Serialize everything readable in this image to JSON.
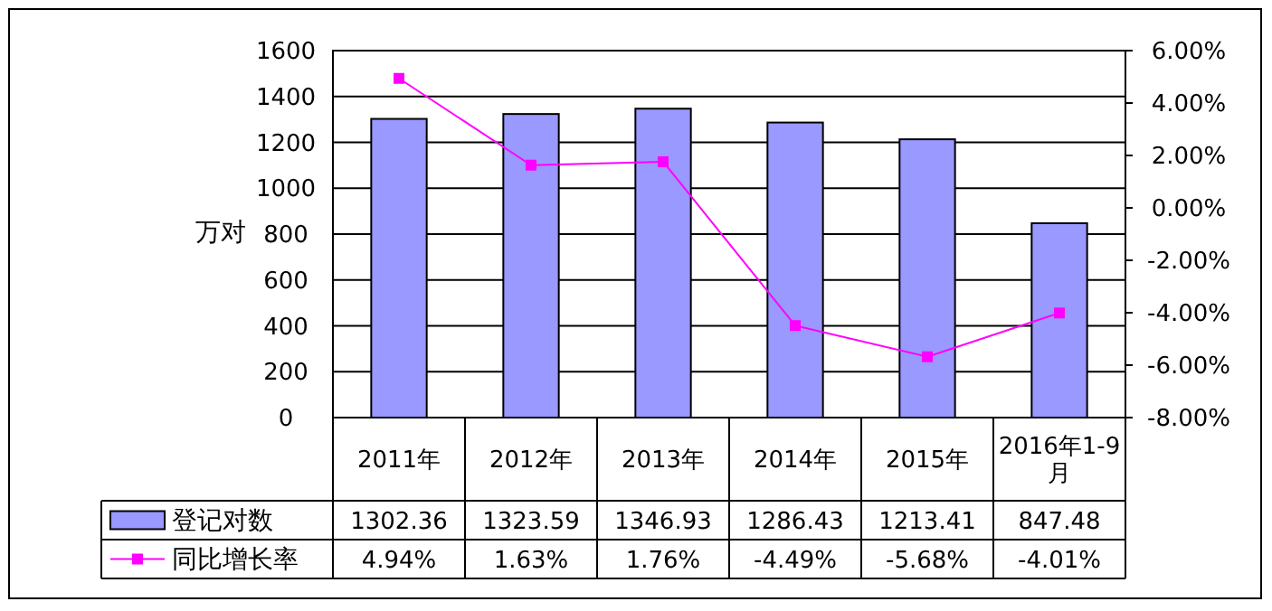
{
  "chart_data": {
    "type": "bar",
    "ylabel": "万对",
    "categories": [
      "2011年",
      "2012年",
      "2013年",
      "2014年",
      "2015年",
      "2016年1-9月"
    ],
    "series": [
      {
        "name": "登记对数",
        "color": "#9999ff",
        "values": [
          1302.36,
          1323.59,
          1346.93,
          1286.43,
          1213.41,
          847.48
        ],
        "value_labels": [
          "1302.36",
          "1323.59",
          "1346.93",
          "1286.43",
          "1213.41",
          "847.48"
        ]
      },
      {
        "name": "同比增长率",
        "type": "line",
        "axis": "y2",
        "color": "#ff00ff",
        "marker": "square",
        "values": [
          4.94,
          1.63,
          1.76,
          -4.49,
          -5.68,
          -4.01
        ],
        "value_labels": [
          "4.94%",
          "1.63%",
          "1.76%",
          "-4.49%",
          "-5.68%",
          "-4.01%"
        ]
      }
    ],
    "ylim": [
      0,
      1600
    ],
    "yticks": [
      0,
      200,
      400,
      600,
      800,
      1000,
      1200,
      1400,
      1600
    ],
    "y2lim": [
      -8,
      6
    ],
    "y2ticks": [
      {
        "value": 6,
        "label": "6.00%"
      },
      {
        "value": 4,
        "label": "4.00%"
      },
      {
        "value": 2,
        "label": "2.00%"
      },
      {
        "value": 0,
        "label": "0.00%"
      },
      {
        "value": -2,
        "label": "-2.00%"
      },
      {
        "value": -4,
        "label": "-4.00%"
      },
      {
        "value": -6,
        "label": "-6.00%"
      },
      {
        "value": -8,
        "label": "-8.00%"
      }
    ],
    "grid": "y",
    "legend": "bottom"
  }
}
